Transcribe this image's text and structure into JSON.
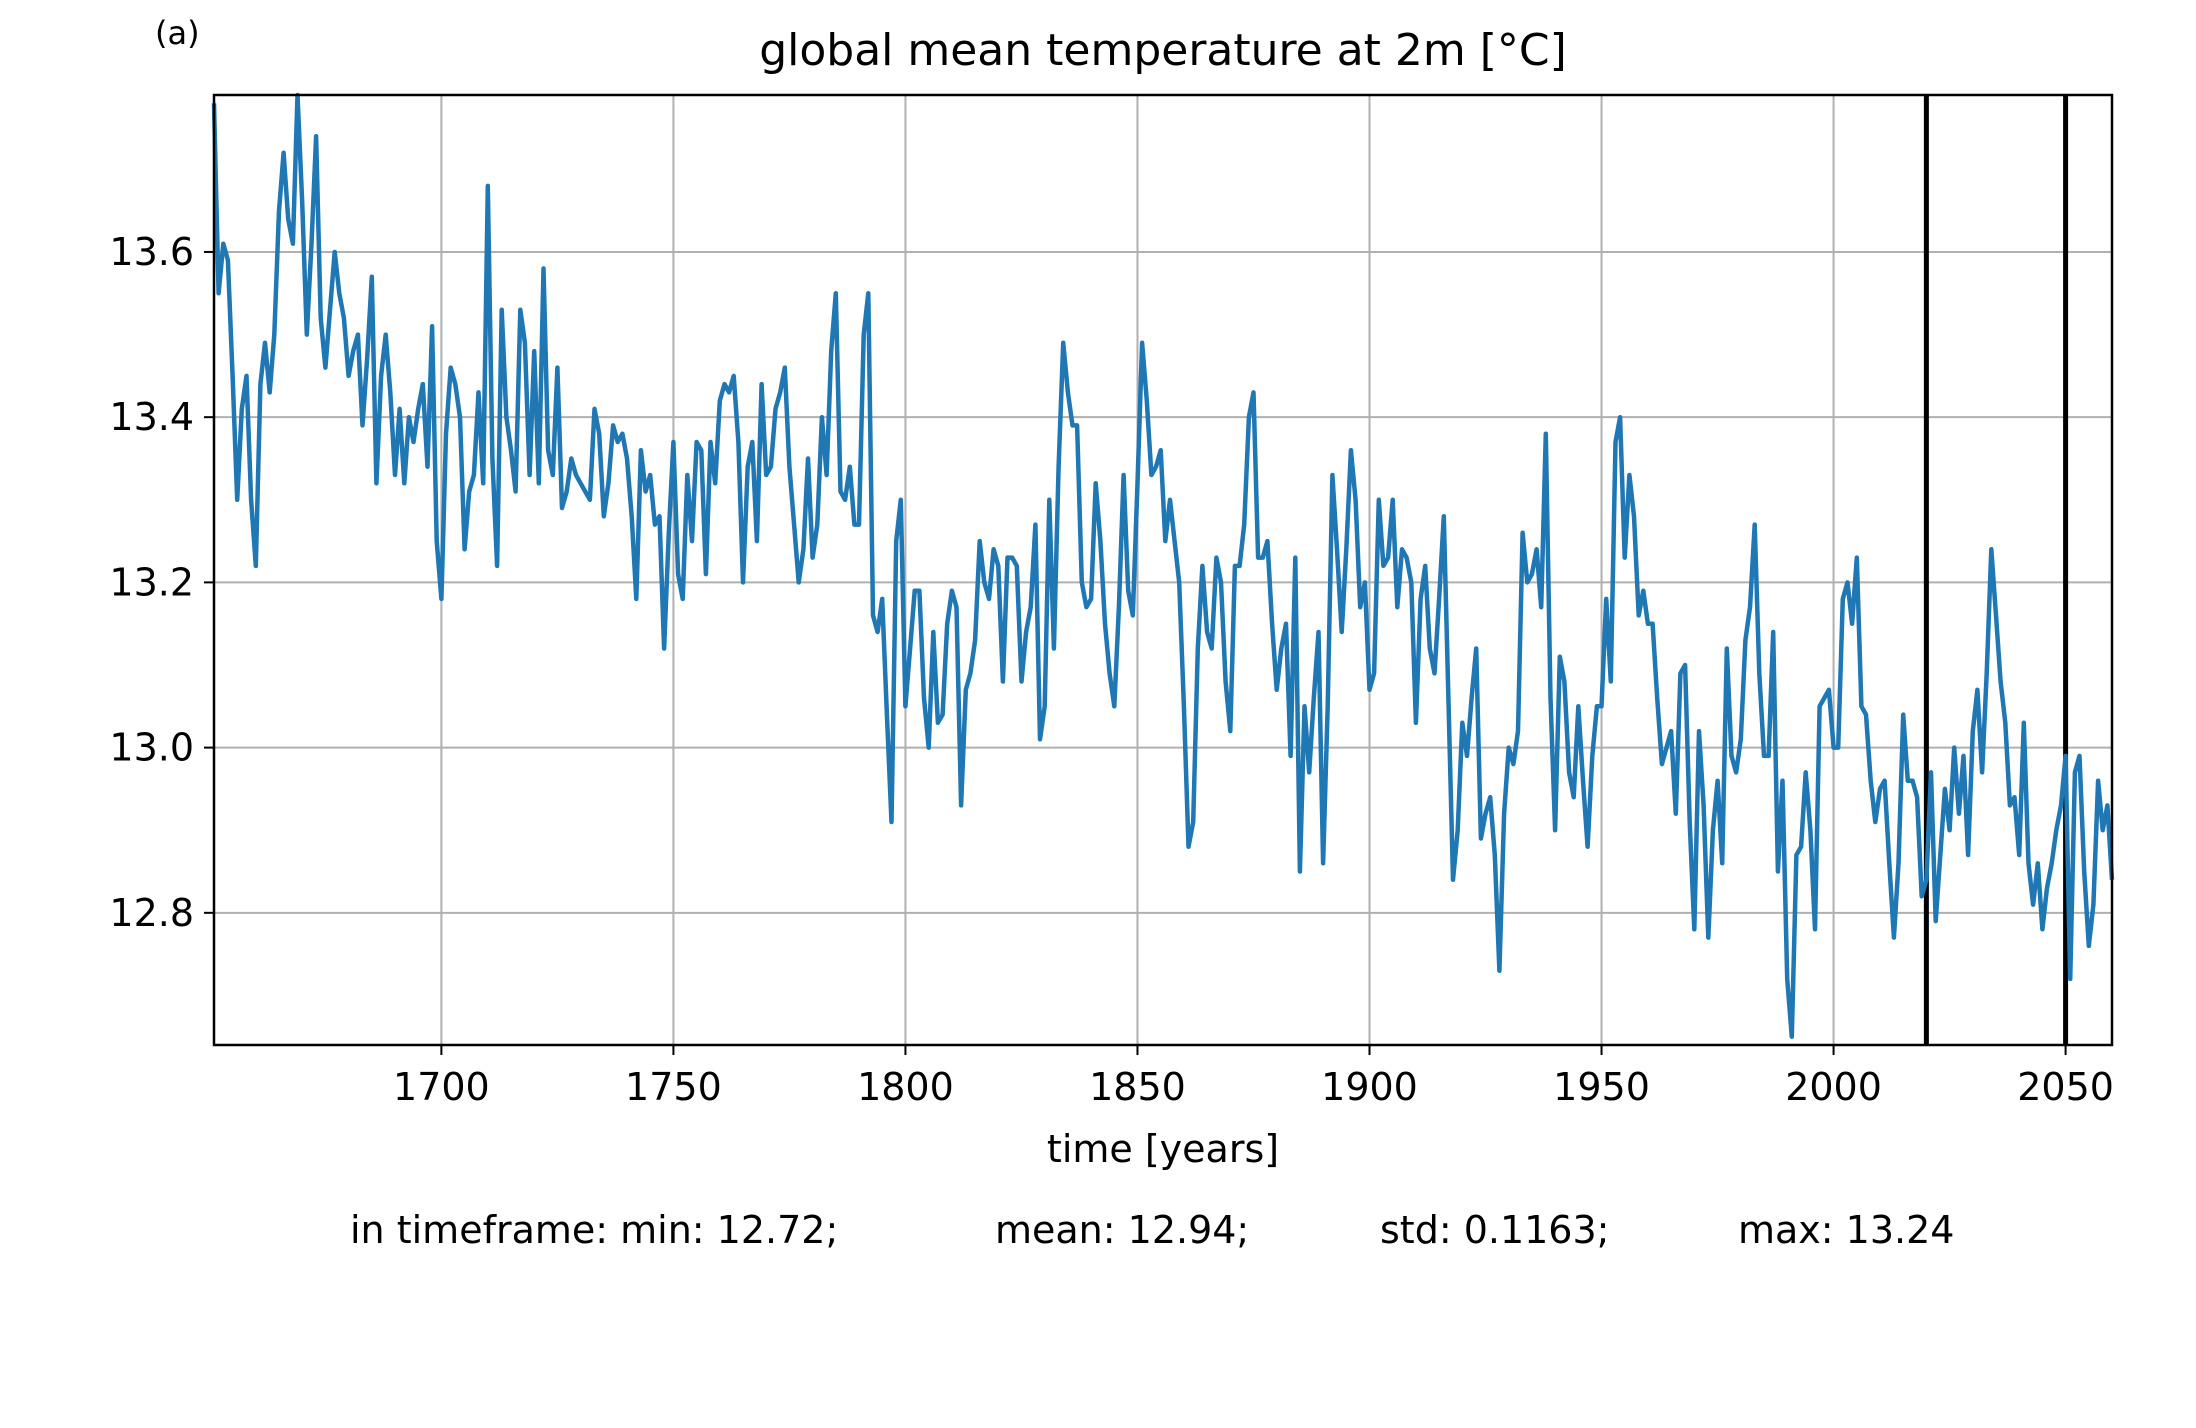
{
  "panel_label": "(a)",
  "stats": {
    "min": "in timeframe: min: 12.72;",
    "mean": "mean: 12.94;",
    "std": "std: 0.1163;",
    "max": "max: 13.24"
  },
  "colors": {
    "series": "#1f77b4",
    "grid": "#b0b0b0",
    "marker": "#000000"
  },
  "chart_data": {
    "type": "line",
    "title": "global mean temperature at 2m [°C]",
    "xlabel": "time [years]",
    "ylabel": "",
    "xlim": [
      1651,
      2060
    ],
    "ylim": [
      12.64,
      13.79
    ],
    "xticks": [
      1700,
      1750,
      1800,
      1850,
      1900,
      1950,
      2000,
      2050
    ],
    "yticks": [
      12.8,
      13.0,
      13.2,
      13.4,
      13.6
    ],
    "grid": true,
    "vertical_markers": [
      2020,
      2050
    ],
    "series": [
      {
        "x_start": 1651,
        "x_step": 1,
        "values": [
          13.78,
          13.55,
          13.61,
          13.59,
          13.45,
          13.3,
          13.41,
          13.45,
          13.3,
          13.22,
          13.44,
          13.49,
          13.43,
          13.5,
          13.65,
          13.72,
          13.64,
          13.61,
          13.79,
          13.66,
          13.5,
          13.61,
          13.74,
          13.52,
          13.46,
          13.53,
          13.6,
          13.55,
          13.52,
          13.45,
          13.48,
          13.5,
          13.39,
          13.47,
          13.57,
          13.32,
          13.45,
          13.5,
          13.43,
          13.33,
          13.41,
          13.32,
          13.4,
          13.37,
          13.41,
          13.44,
          13.34,
          13.51,
          13.25,
          13.18,
          13.38,
          13.46,
          13.44,
          13.4,
          13.24,
          13.31,
          13.33,
          13.43,
          13.32,
          13.68,
          13.35,
          13.22,
          13.53,
          13.4,
          13.36,
          13.31,
          13.53,
          13.49,
          13.33,
          13.48,
          13.32,
          13.58,
          13.36,
          13.33,
          13.46,
          13.29,
          13.31,
          13.35,
          13.33,
          13.32,
          13.31,
          13.3,
          13.41,
          13.38,
          13.28,
          13.32,
          13.39,
          13.37,
          13.38,
          13.35,
          13.28,
          13.18,
          13.36,
          13.31,
          13.33,
          13.27,
          13.28,
          13.12,
          13.26,
          13.37,
          13.21,
          13.18,
          13.33,
          13.25,
          13.37,
          13.36,
          13.21,
          13.37,
          13.32,
          13.42,
          13.44,
          13.43,
          13.45,
          13.37,
          13.2,
          13.34,
          13.37,
          13.25,
          13.44,
          13.33,
          13.34,
          13.41,
          13.43,
          13.46,
          13.34,
          13.27,
          13.2,
          13.24,
          13.35,
          13.23,
          13.27,
          13.4,
          13.33,
          13.48,
          13.55,
          13.31,
          13.3,
          13.34,
          13.27,
          13.27,
          13.5,
          13.55,
          13.16,
          13.14,
          13.18,
          13.04,
          12.91,
          13.25,
          13.3,
          13.05,
          13.12,
          13.19,
          13.19,
          13.06,
          13.0,
          13.14,
          13.03,
          13.04,
          13.15,
          13.19,
          13.17,
          12.93,
          13.07,
          13.09,
          13.13,
          13.25,
          13.2,
          13.18,
          13.24,
          13.22,
          13.08,
          13.23,
          13.23,
          13.22,
          13.08,
          13.14,
          13.17,
          13.27,
          13.01,
          13.05,
          13.3,
          13.12,
          13.34,
          13.49,
          13.43,
          13.39,
          13.39,
          13.2,
          13.17,
          13.18,
          13.32,
          13.25,
          13.15,
          13.09,
          13.05,
          13.17,
          13.33,
          13.19,
          13.16,
          13.32,
          13.49,
          13.42,
          13.33,
          13.34,
          13.36,
          13.25,
          13.3,
          13.25,
          13.2,
          13.05,
          12.88,
          12.91,
          13.12,
          13.22,
          13.14,
          13.12,
          13.23,
          13.2,
          13.08,
          13.02,
          13.22,
          13.22,
          13.27,
          13.4,
          13.43,
          13.23,
          13.23,
          13.25,
          13.15,
          13.07,
          13.12,
          13.15,
          12.99,
          13.23,
          12.85,
          13.05,
          12.97,
          13.06,
          13.14,
          12.86,
          13.05,
          13.33,
          13.24,
          13.14,
          13.24,
          13.36,
          13.3,
          13.17,
          13.2,
          13.07,
          13.09,
          13.3,
          13.22,
          13.23,
          13.3,
          13.17,
          13.24,
          13.23,
          13.2,
          13.03,
          13.18,
          13.22,
          13.12,
          13.09,
          13.18,
          13.28,
          13.06,
          12.84,
          12.9,
          13.03,
          12.99,
          13.06,
          13.12,
          12.89,
          12.92,
          12.94,
          12.87,
          12.73,
          12.92,
          13.0,
          12.98,
          13.02,
          13.26,
          13.2,
          13.21,
          13.24,
          13.17,
          13.38,
          13.06,
          12.9,
          13.11,
          13.08,
          12.97,
          12.94,
          13.05,
          12.96,
          12.88,
          12.99,
          13.05,
          13.05,
          13.18,
          13.08,
          13.37,
          13.4,
          13.23,
          13.33,
          13.28,
          13.16,
          13.19,
          13.15,
          13.15,
          13.06,
          12.98,
          13.0,
          13.02,
          12.92,
          13.09,
          13.1,
          12.91,
          12.78,
          13.02,
          12.93,
          12.77,
          12.9,
          12.96,
          12.86,
          13.12,
          12.99,
          12.97,
          13.01,
          13.13,
          13.17,
          13.27,
          13.09,
          12.99,
          12.99,
          13.14,
          12.85,
          12.96,
          12.72,
          12.65,
          12.87,
          12.88,
          12.97,
          12.9,
          12.78,
          13.05,
          13.06,
          13.07,
          13.0,
          13.0,
          13.18,
          13.2,
          13.15,
          13.23,
          13.05,
          13.04,
          12.96,
          12.91,
          12.95,
          12.96,
          12.86,
          12.77,
          12.86,
          13.04,
          12.96,
          12.96,
          12.94,
          12.82,
          12.84,
          12.97,
          12.79,
          12.87,
          12.95,
          12.9,
          13.0,
          12.92,
          12.99,
          12.87,
          13.02,
          13.07,
          12.97,
          13.09,
          13.24,
          13.16,
          13.08,
          13.03,
          12.93,
          12.94,
          12.87,
          13.03,
          12.86,
          12.81,
          12.86,
          12.78,
          12.83,
          12.86,
          12.9,
          12.93,
          12.99,
          12.72,
          12.97,
          12.99,
          12.85,
          12.76,
          12.81,
          12.96,
          12.9,
          12.93,
          12.84
        ]
      }
    ]
  }
}
